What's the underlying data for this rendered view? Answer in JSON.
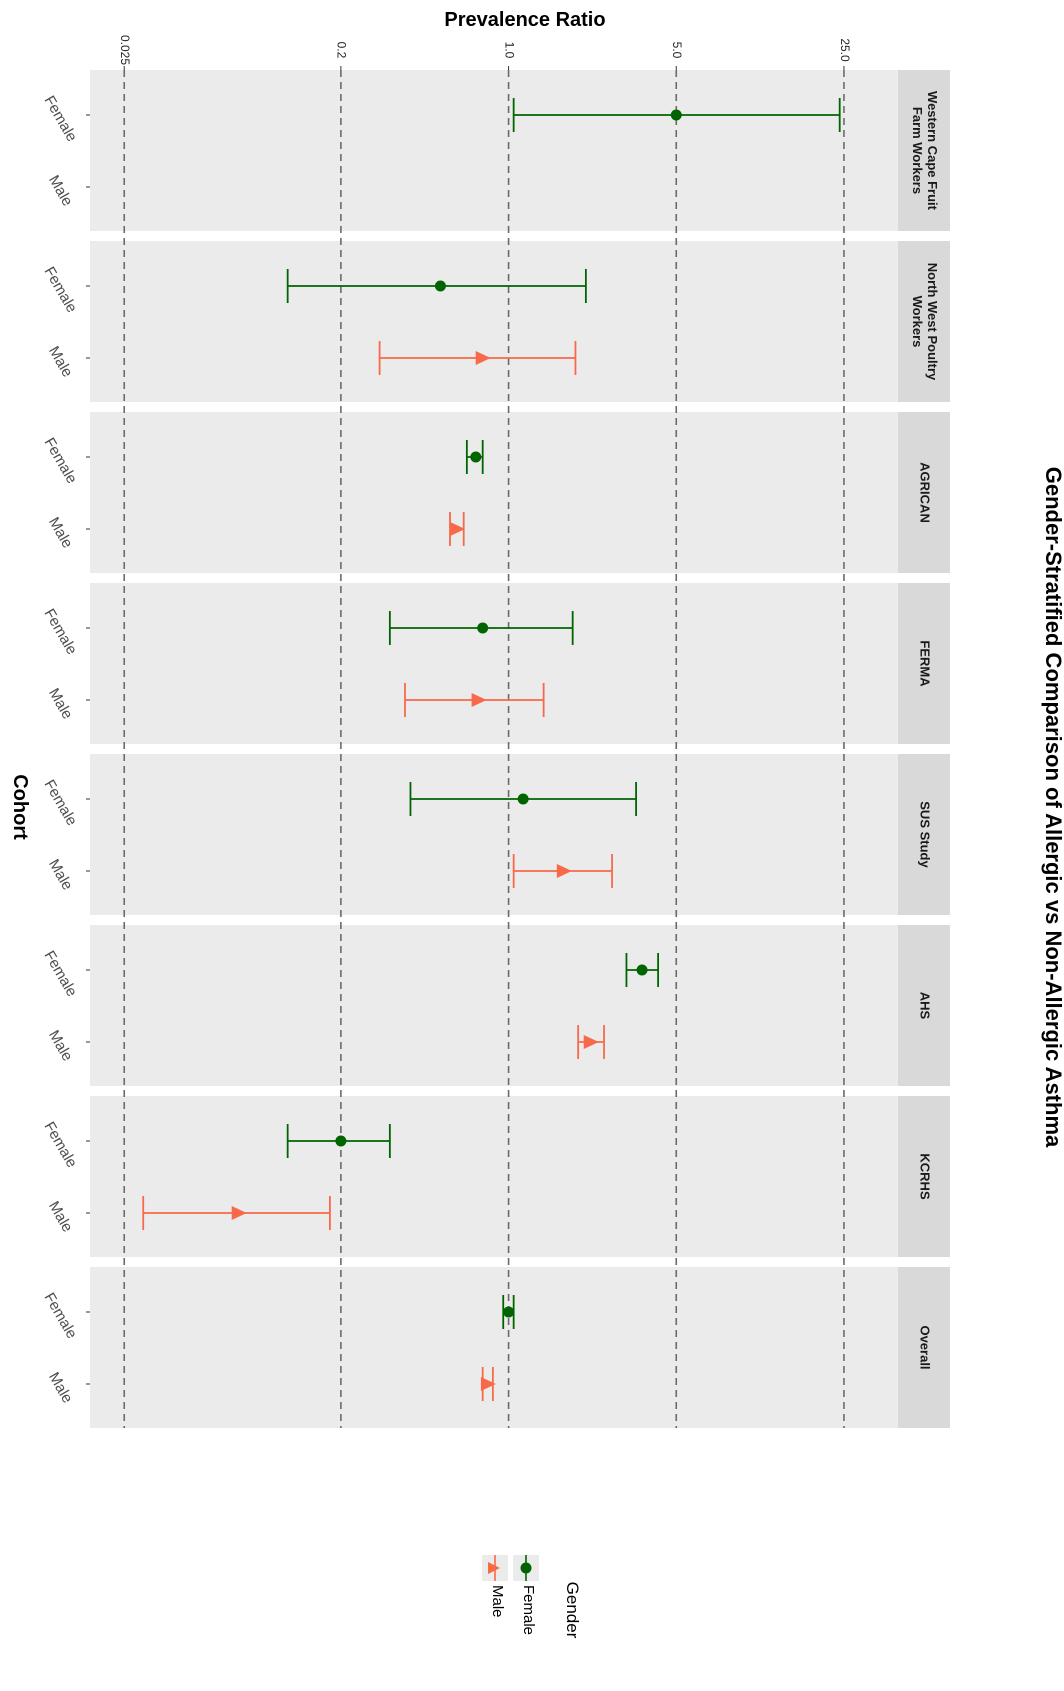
{
  "chart_data": {
    "type": "scatter",
    "title": "Gender-Stratified Comparison of Allergic vs Non-Allergic Asthma",
    "xlabel": "Cohort",
    "ylabel": "Prevalence Ratio",
    "y_scale": "log",
    "y_ticks": [
      "0.025",
      "0.2",
      "1.0",
      "5.0",
      "25.0"
    ],
    "y_tick_values": [
      0.025,
      0.2,
      1.0,
      5.0,
      25.0
    ],
    "y_range": [
      0.018,
      42
    ],
    "grid": "dashed reference lines at tick values",
    "legend": {
      "title": "Gender",
      "position": "bottom",
      "entries": [
        "Female",
        "Male"
      ]
    },
    "colors": {
      "Female": "#006400",
      "Male": "#F8694A"
    },
    "categories": [
      "Female",
      "Male"
    ],
    "panels": [
      {
        "label": "Western Cape Fruit Farm Workers",
        "label_lines": [
          "Western Cape Fruit",
          "Farm Workers"
        ],
        "points": [
          {
            "gender": "Female",
            "estimate": 5.0,
            "lower": 1.05,
            "upper": 24.0
          }
        ]
      },
      {
        "label": "North West Poultry Workers",
        "label_lines": [
          "North West Poultry",
          "Workers"
        ],
        "points": [
          {
            "gender": "Female",
            "estimate": 0.52,
            "lower": 0.12,
            "upper": 2.1
          },
          {
            "gender": "Male",
            "estimate": 0.78,
            "lower": 0.29,
            "upper": 1.9
          }
        ]
      },
      {
        "label": "AGRICAN",
        "label_lines": [
          "AGRICAN"
        ],
        "points": [
          {
            "gender": "Female",
            "estimate": 0.73,
            "lower": 0.67,
            "upper": 0.78
          },
          {
            "gender": "Male",
            "estimate": 0.61,
            "lower": 0.57,
            "upper": 0.65
          }
        ]
      },
      {
        "label": "FERMA",
        "label_lines": [
          "FERMA"
        ],
        "points": [
          {
            "gender": "Female",
            "estimate": 0.78,
            "lower": 0.32,
            "upper": 1.85
          },
          {
            "gender": "Male",
            "estimate": 0.75,
            "lower": 0.37,
            "upper": 1.4
          }
        ]
      },
      {
        "label": "SUS Study",
        "label_lines": [
          "SUS Study"
        ],
        "points": [
          {
            "gender": "Female",
            "estimate": 1.15,
            "lower": 0.39,
            "upper": 3.4
          },
          {
            "gender": "Male",
            "estimate": 1.7,
            "lower": 1.05,
            "upper": 2.7
          }
        ]
      },
      {
        "label": "AHS",
        "label_lines": [
          "AHS"
        ],
        "points": [
          {
            "gender": "Female",
            "estimate": 3.6,
            "lower": 3.1,
            "upper": 4.2
          },
          {
            "gender": "Male",
            "estimate": 2.2,
            "lower": 1.95,
            "upper": 2.5
          }
        ]
      },
      {
        "label": "KCRHS",
        "label_lines": [
          "KCRHS"
        ],
        "points": [
          {
            "gender": "Female",
            "estimate": 0.2,
            "lower": 0.12,
            "upper": 0.32
          },
          {
            "gender": "Male",
            "estimate": 0.075,
            "lower": 0.03,
            "upper": 0.18
          }
        ]
      },
      {
        "label": "Overall",
        "label_lines": [
          "Overall"
        ],
        "points": [
          {
            "gender": "Female",
            "estimate": 1.0,
            "lower": 0.95,
            "upper": 1.05
          },
          {
            "gender": "Male",
            "estimate": 0.82,
            "lower": 0.78,
            "upper": 0.86
          }
        ]
      }
    ]
  }
}
